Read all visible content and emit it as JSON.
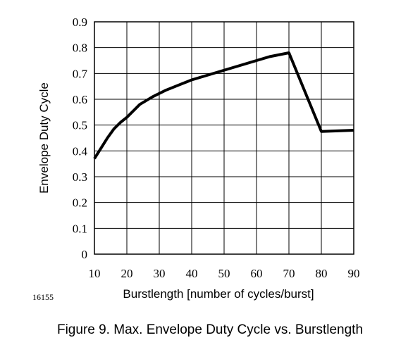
{
  "figure_id": "16155",
  "caption": "Figure 9.  Max. Envelope Duty Cycle vs. Burstlength",
  "colors": {
    "line": "#000000",
    "grid": "#000000",
    "background": "#ffffff"
  },
  "chart_data": {
    "type": "line",
    "title": "",
    "xlabel": "Burstlength [number of cycles/burst]",
    "ylabel": "Envelope Duty Cycle",
    "xlim": [
      10,
      90
    ],
    "ylim": [
      0,
      0.9
    ],
    "xticks": [
      "10",
      "20",
      "30",
      "40",
      "50",
      "60",
      "70",
      "80",
      "90"
    ],
    "yticks": [
      "0",
      "0.1",
      "0.2",
      "0.3",
      "0.4",
      "0.5",
      "0.6",
      "0.7",
      "0.8",
      "0.9"
    ],
    "grid": true,
    "legend": "none",
    "series": [
      {
        "x": [
          10,
          12,
          14,
          16,
          18,
          20,
          22,
          24,
          28,
          32,
          36,
          40,
          44,
          48,
          52,
          56,
          60,
          64,
          70,
          80,
          90
        ],
        "y": [
          0.37,
          0.41,
          0.45,
          0.485,
          0.51,
          0.53,
          0.555,
          0.58,
          0.61,
          0.635,
          0.655,
          0.675,
          0.69,
          0.705,
          0.72,
          0.735,
          0.75,
          0.765,
          0.78,
          0.475,
          0.48
        ]
      }
    ]
  }
}
